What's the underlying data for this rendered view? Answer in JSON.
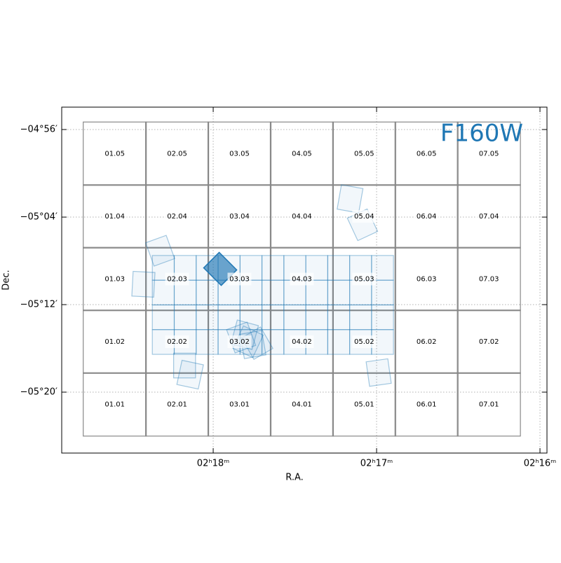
{
  "chart_data": {
    "type": "footprint",
    "title": "F160W",
    "title_color": "#1f77b4",
    "xlabel": "R.A.",
    "ylabel": "Dec.",
    "xlim": [
      34.7318,
      33.9893
    ],
    "ylim": [
      -5.4261,
      -4.8992
    ],
    "xticks": [
      {
        "value": 34.5,
        "label": "02ʰ18ᵐ"
      },
      {
        "value": 34.25,
        "label": "02ʰ17ᵐ"
      },
      {
        "value": 34.0,
        "label": "02ʰ16ᵐ"
      }
    ],
    "yticks": [
      {
        "value": -4.9333,
        "label": "−04°56′"
      },
      {
        "value": -5.0667,
        "label": "−05°04′"
      },
      {
        "value": -5.2,
        "label": "−05°12′"
      },
      {
        "value": -5.3333,
        "label": "−05°20′"
      }
    ],
    "grid": true,
    "tile_color": "#888888",
    "tile_size": 0.0965,
    "tiles": [
      {
        "label": "01.05",
        "ra": 34.6506,
        "dec": -4.9701
      },
      {
        "label": "02.05",
        "ra": 34.5552,
        "dec": -4.9701
      },
      {
        "label": "03.05",
        "ra": 34.4598,
        "dec": -4.9701
      },
      {
        "label": "04.05",
        "ra": 34.3644,
        "dec": -4.9701
      },
      {
        "label": "05.05",
        "ra": 34.269,
        "dec": -4.9701
      },
      {
        "label": "06.05",
        "ra": 34.1736,
        "dec": -4.9701
      },
      {
        "label": "07.05",
        "ra": 34.0782,
        "dec": -4.9701
      },
      {
        "label": "01.04",
        "ra": 34.6506,
        "dec": -5.0656
      },
      {
        "label": "02.04",
        "ra": 34.5552,
        "dec": -5.0656
      },
      {
        "label": "03.04",
        "ra": 34.4598,
        "dec": -5.0656
      },
      {
        "label": "04.04",
        "ra": 34.3644,
        "dec": -5.0656
      },
      {
        "label": "05.04",
        "ra": 34.269,
        "dec": -5.0656
      },
      {
        "label": "06.04",
        "ra": 34.1736,
        "dec": -5.0656
      },
      {
        "label": "07.04",
        "ra": 34.0782,
        "dec": -5.0656
      },
      {
        "label": "01.03",
        "ra": 34.6506,
        "dec": -5.161
      },
      {
        "label": "02.03",
        "ra": 34.5552,
        "dec": -5.161
      },
      {
        "label": "03.03",
        "ra": 34.4598,
        "dec": -5.161
      },
      {
        "label": "04.03",
        "ra": 34.3644,
        "dec": -5.161
      },
      {
        "label": "05.03",
        "ra": 34.269,
        "dec": -5.161
      },
      {
        "label": "06.03",
        "ra": 34.1736,
        "dec": -5.161
      },
      {
        "label": "07.03",
        "ra": 34.0782,
        "dec": -5.161
      },
      {
        "label": "01.02",
        "ra": 34.6506,
        "dec": -5.2565
      },
      {
        "label": "02.02",
        "ra": 34.5552,
        "dec": -5.2565
      },
      {
        "label": "03.02",
        "ra": 34.4598,
        "dec": -5.2565
      },
      {
        "label": "04.02",
        "ra": 34.3644,
        "dec": -5.2565
      },
      {
        "label": "05.02",
        "ra": 34.269,
        "dec": -5.2565
      },
      {
        "label": "06.02",
        "ra": 34.1736,
        "dec": -5.2565
      },
      {
        "label": "07.02",
        "ra": 34.0782,
        "dec": -5.2565
      },
      {
        "label": "01.01",
        "ra": 34.6506,
        "dec": -5.352
      },
      {
        "label": "02.01",
        "ra": 34.5552,
        "dec": -5.352
      },
      {
        "label": "03.01",
        "ra": 34.4598,
        "dec": -5.352
      },
      {
        "label": "04.01",
        "ra": 34.3644,
        "dec": -5.352
      },
      {
        "label": "05.01",
        "ra": 34.269,
        "dec": -5.352
      },
      {
        "label": "06.01",
        "ra": 34.1736,
        "dec": -5.352
      },
      {
        "label": "07.01",
        "ra": 34.0782,
        "dec": -5.352
      }
    ],
    "pointing_color": "#1f77b4",
    "footprint_size": [
      0.0335,
      0.0377
    ],
    "pointings": [
      {
        "ra": 34.5764,
        "dec": -5.144,
        "pa": 0
      },
      {
        "ra": 34.5428,
        "dec": -5.144,
        "pa": 0
      },
      {
        "ra": 34.5093,
        "dec": -5.144,
        "pa": 0
      },
      {
        "ra": 34.4757,
        "dec": -5.144,
        "pa": 0
      },
      {
        "ra": 34.4422,
        "dec": -5.144,
        "pa": 0
      },
      {
        "ra": 34.4086,
        "dec": -5.144,
        "pa": 0
      },
      {
        "ra": 34.3751,
        "dec": -5.144,
        "pa": 0
      },
      {
        "ra": 34.3415,
        "dec": -5.144,
        "pa": 0
      },
      {
        "ra": 34.308,
        "dec": -5.144,
        "pa": 0
      },
      {
        "ra": 34.2744,
        "dec": -5.144,
        "pa": 0
      },
      {
        "ra": 34.2409,
        "dec": -5.144,
        "pa": 0
      },
      {
        "ra": 34.5764,
        "dec": -5.1816,
        "pa": 0
      },
      {
        "ra": 34.5428,
        "dec": -5.1816,
        "pa": 0
      },
      {
        "ra": 34.5093,
        "dec": -5.1816,
        "pa": 0
      },
      {
        "ra": 34.4757,
        "dec": -5.1816,
        "pa": 0
      },
      {
        "ra": 34.4422,
        "dec": -5.1816,
        "pa": 0
      },
      {
        "ra": 34.4086,
        "dec": -5.1816,
        "pa": 0
      },
      {
        "ra": 34.3751,
        "dec": -5.1816,
        "pa": 0
      },
      {
        "ra": 34.3415,
        "dec": -5.1816,
        "pa": 0
      },
      {
        "ra": 34.308,
        "dec": -5.1816,
        "pa": 0
      },
      {
        "ra": 34.2744,
        "dec": -5.1816,
        "pa": 0
      },
      {
        "ra": 34.2409,
        "dec": -5.1816,
        "pa": 0
      },
      {
        "ra": 34.5764,
        "dec": -5.2193,
        "pa": 0
      },
      {
        "ra": 34.5428,
        "dec": -5.2193,
        "pa": 0
      },
      {
        "ra": 34.5093,
        "dec": -5.2193,
        "pa": 0
      },
      {
        "ra": 34.4757,
        "dec": -5.2193,
        "pa": 0
      },
      {
        "ra": 34.4422,
        "dec": -5.2193,
        "pa": 0
      },
      {
        "ra": 34.4086,
        "dec": -5.2193,
        "pa": 0
      },
      {
        "ra": 34.3751,
        "dec": -5.2193,
        "pa": 0
      },
      {
        "ra": 34.3415,
        "dec": -5.2193,
        "pa": 0
      },
      {
        "ra": 34.308,
        "dec": -5.2193,
        "pa": 0
      },
      {
        "ra": 34.2744,
        "dec": -5.2193,
        "pa": 0
      },
      {
        "ra": 34.2409,
        "dec": -5.2193,
        "pa": 0
      },
      {
        "ra": 34.5764,
        "dec": -5.2569,
        "pa": 0
      },
      {
        "ra": 34.5428,
        "dec": -5.2569,
        "pa": 0
      },
      {
        "ra": 34.5093,
        "dec": -5.2569,
        "pa": 0
      },
      {
        "ra": 34.4757,
        "dec": -5.2569,
        "pa": 0
      },
      {
        "ra": 34.4422,
        "dec": -5.2569,
        "pa": 0
      },
      {
        "ra": 34.4086,
        "dec": -5.2569,
        "pa": 0
      },
      {
        "ra": 34.3751,
        "dec": -5.2569,
        "pa": 0
      },
      {
        "ra": 34.3415,
        "dec": -5.2569,
        "pa": 0
      },
      {
        "ra": 34.308,
        "dec": -5.2569,
        "pa": 0
      },
      {
        "ra": 34.2744,
        "dec": -5.2569,
        "pa": 0
      },
      {
        "ra": 34.2409,
        "dec": -5.2569,
        "pa": 0
      },
      {
        "ra": 34.5812,
        "dec": -5.1179,
        "pa": 20
      },
      {
        "ra": 34.6068,
        "dec": -5.169,
        "pa": -3
      },
      {
        "ra": 34.2906,
        "dec": -5.0389,
        "pa": -10
      },
      {
        "ra": 34.2716,
        "dec": -5.0784,
        "pa": 25
      },
      {
        "ra": 34.5438,
        "dec": -5.2928,
        "pa": 0
      },
      {
        "ra": 34.5353,
        "dec": -5.3067,
        "pa": -12
      },
      {
        "ra": 34.2468,
        "dec": -5.3035,
        "pa": 8
      },
      {
        "ra": 34.4573,
        "dec": -5.2501,
        "pa": 20
      },
      {
        "ra": 34.4466,
        "dec": -5.2565,
        "pa": -25
      },
      {
        "ra": 34.4391,
        "dec": -5.2608,
        "pa": 10
      },
      {
        "ra": 34.4327,
        "dec": -5.2587,
        "pa": 30
      },
      {
        "ra": 34.4519,
        "dec": -5.2459,
        "pa": -15
      }
    ],
    "highlight": {
      "ra": 34.4893,
      "dec": -5.1456,
      "pa": 45
    }
  }
}
